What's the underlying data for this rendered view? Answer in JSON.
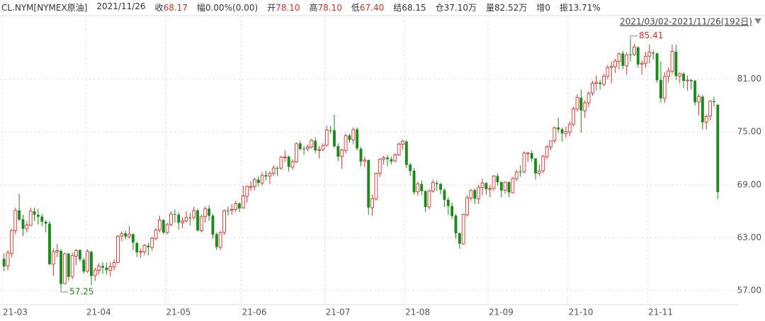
{
  "header": {
    "symbol": "CL.NYM[NYMEX原油]",
    "date": "2021/11/26",
    "items": [
      {
        "label": "收",
        "value": "68.17",
        "color": "red"
      },
      {
        "label": "幅",
        "value": "0.00%(0.00)",
        "color": "dark"
      },
      {
        "label": "开",
        "value": "78.10",
        "color": "red"
      },
      {
        "label": "高",
        "value": "78.10",
        "color": "red"
      },
      {
        "label": "低",
        "value": "67.40",
        "color": "red"
      },
      {
        "label": "结",
        "value": "68.15",
        "color": "dark"
      },
      {
        "label": "仓",
        "value": "37.10万",
        "color": "dark"
      },
      {
        "label": "量",
        "value": "82.52万",
        "color": "dark"
      },
      {
        "label": "增",
        "value": "0",
        "color": "dark"
      },
      {
        "label": "振",
        "value": "13.71%",
        "color": "dark"
      }
    ]
  },
  "chart_data": {
    "type": "candlestick",
    "range_label": "2021/03/02-2021/11/26(192日)",
    "up_color": "#d6322b",
    "down_color": "#1b8a1b",
    "ylim": [
      55.4,
      88.2
    ],
    "yticks": [
      {
        "value": 57,
        "label": "57.00"
      },
      {
        "value": 63,
        "label": "63.00"
      },
      {
        "value": 69,
        "label": "69.00"
      },
      {
        "value": 75,
        "label": "75.00"
      },
      {
        "value": 81,
        "label": "81.00"
      }
    ],
    "grid": true,
    "categories": [
      "21-03",
      null,
      null,
      null,
      null,
      null,
      null,
      null,
      null,
      null,
      null,
      null,
      null,
      null,
      null,
      null,
      null,
      null,
      null,
      null,
      null,
      null,
      "21-04",
      null,
      null,
      null,
      null,
      null,
      null,
      null,
      null,
      null,
      null,
      null,
      null,
      null,
      null,
      null,
      null,
      null,
      null,
      null,
      null,
      "21-05",
      null,
      null,
      null,
      null,
      null,
      null,
      null,
      null,
      null,
      null,
      null,
      null,
      null,
      null,
      null,
      null,
      null,
      null,
      null,
      "21-06",
      null,
      null,
      null,
      null,
      null,
      null,
      null,
      null,
      null,
      null,
      null,
      null,
      null,
      null,
      null,
      null,
      null,
      null,
      null,
      null,
      null,
      "21-07",
      null,
      null,
      null,
      null,
      null,
      null,
      null,
      null,
      null,
      null,
      null,
      null,
      null,
      null,
      null,
      null,
      null,
      null,
      null,
      null,
      "21-08",
      null,
      null,
      null,
      null,
      null,
      null,
      null,
      null,
      null,
      null,
      null,
      null,
      null,
      null,
      null,
      null,
      null,
      null,
      null,
      null,
      null,
      "21-09",
      null,
      null,
      null,
      null,
      null,
      null,
      null,
      null,
      null,
      null,
      null,
      null,
      null,
      null,
      null,
      null,
      null,
      null,
      null,
      null,
      "21-10",
      null,
      null,
      null,
      null,
      null,
      null,
      null,
      null,
      null,
      null,
      null,
      null,
      null,
      null,
      null,
      null,
      null,
      null,
      null,
      null,
      "21-11",
      null,
      null,
      null,
      null,
      null,
      null,
      null,
      null,
      null,
      null,
      null,
      null,
      null,
      null,
      null,
      null,
      null,
      null
    ],
    "ohlc": [
      [
        60.6,
        61.2,
        59.2,
        59.75
      ],
      [
        59.8,
        61.6,
        59.3,
        61.28
      ],
      [
        61.2,
        64.0,
        60.8,
        63.83
      ],
      [
        63.8,
        66.4,
        63.4,
        66.09
      ],
      [
        66.1,
        67.98,
        64.9,
        65.05
      ],
      [
        65.1,
        65.6,
        63.2,
        64.01
      ],
      [
        64.0,
        64.9,
        63.6,
        64.44
      ],
      [
        64.4,
        66.4,
        64.3,
        66.02
      ],
      [
        66.0,
        66.4,
        64.9,
        65.61
      ],
      [
        65.6,
        66.3,
        64.5,
        65.39
      ],
      [
        65.4,
        65.7,
        64.3,
        64.8
      ],
      [
        64.8,
        65.0,
        63.6,
        64.6
      ],
      [
        64.6,
        64.9,
        59.9,
        60.0
      ],
      [
        60.0,
        61.8,
        58.7,
        61.42
      ],
      [
        61.4,
        62.3,
        60.8,
        61.55
      ],
      [
        61.5,
        61.7,
        57.25,
        57.76
      ],
      [
        57.8,
        61.3,
        57.7,
        61.18
      ],
      [
        61.2,
        61.3,
        58.1,
        58.56
      ],
      [
        58.6,
        61.3,
        58.3,
        60.97
      ],
      [
        60.9,
        61.7,
        59.9,
        61.56
      ],
      [
        61.6,
        61.7,
        60.3,
        60.55
      ],
      [
        60.5,
        60.7,
        58.9,
        59.16
      ],
      [
        59.2,
        61.7,
        59.0,
        61.45
      ],
      [
        61.4,
        61.5,
        57.6,
        58.65
      ],
      [
        58.7,
        59.6,
        58.1,
        59.33
      ],
      [
        59.3,
        60.1,
        58.8,
        59.77
      ],
      [
        59.8,
        60.2,
        58.9,
        59.6
      ],
      [
        59.6,
        60.2,
        58.8,
        59.32
      ],
      [
        59.3,
        60.2,
        58.6,
        59.7
      ],
      [
        59.7,
        60.6,
        59.3,
        60.18
      ],
      [
        60.2,
        63.3,
        60.1,
        63.15
      ],
      [
        63.2,
        63.7,
        62.6,
        63.46
      ],
      [
        63.5,
        63.8,
        62.8,
        63.13
      ],
      [
        63.1,
        64.3,
        62.9,
        63.38
      ],
      [
        63.4,
        63.5,
        61.6,
        62.44
      ],
      [
        62.4,
        62.5,
        60.8,
        61.35
      ],
      [
        61.4,
        61.8,
        60.7,
        61.43
      ],
      [
        61.4,
        62.3,
        61.0,
        62.14
      ],
      [
        62.1,
        62.4,
        61.0,
        61.91
      ],
      [
        61.9,
        63.1,
        61.5,
        62.94
      ],
      [
        62.9,
        64.1,
        62.7,
        63.86
      ],
      [
        63.9,
        65.5,
        63.6,
        65.01
      ],
      [
        65.0,
        65.1,
        63.4,
        63.58
      ],
      [
        63.6,
        64.7,
        63.4,
        64.49
      ],
      [
        64.5,
        66.0,
        64.3,
        65.69
      ],
      [
        65.7,
        66.2,
        64.7,
        65.63
      ],
      [
        65.6,
        65.9,
        63.9,
        64.71
      ],
      [
        64.7,
        65.3,
        64.1,
        64.9
      ],
      [
        64.9,
        66.0,
        64.7,
        65.28
      ],
      [
        65.3,
        65.8,
        64.4,
        65.28
      ],
      [
        65.3,
        66.5,
        65.0,
        66.08
      ],
      [
        66.1,
        66.3,
        63.7,
        63.82
      ],
      [
        63.8,
        65.6,
        63.6,
        65.37
      ],
      [
        65.4,
        66.5,
        64.7,
        66.27
      ],
      [
        66.3,
        66.7,
        64.9,
        65.49
      ],
      [
        65.5,
        65.7,
        62.9,
        63.36
      ],
      [
        63.4,
        63.6,
        61.6,
        61.94
      ],
      [
        61.9,
        63.8,
        61.6,
        63.58
      ],
      [
        63.6,
        66.2,
        63.3,
        66.05
      ],
      [
        66.1,
        66.5,
        65.5,
        66.07
      ],
      [
        66.1,
        66.8,
        65.6,
        66.21
      ],
      [
        66.2,
        67.2,
        65.9,
        66.85
      ],
      [
        66.9,
        67.0,
        65.9,
        66.32
      ],
      [
        66.4,
        68.9,
        66.3,
        67.72
      ],
      [
        67.7,
        68.9,
        67.0,
        68.83
      ],
      [
        68.8,
        69.4,
        68.3,
        68.81
      ],
      [
        68.8,
        69.8,
        68.4,
        69.62
      ],
      [
        69.6,
        70.0,
        68.8,
        69.23
      ],
      [
        69.2,
        70.4,
        68.9,
        70.05
      ],
      [
        70.1,
        70.6,
        69.5,
        69.96
      ],
      [
        70.0,
        70.5,
        69.1,
        70.29
      ],
      [
        70.3,
        71.2,
        70.0,
        70.91
      ],
      [
        70.9,
        71.1,
        70.0,
        70.88
      ],
      [
        70.9,
        72.3,
        70.7,
        72.12
      ],
      [
        72.1,
        72.9,
        71.6,
        72.15
      ],
      [
        72.2,
        72.3,
        70.5,
        71.04
      ],
      [
        71.0,
        71.9,
        70.7,
        71.64
      ],
      [
        71.6,
        73.8,
        71.5,
        73.66
      ],
      [
        73.7,
        74.0,
        72.9,
        73.06
      ],
      [
        73.1,
        73.4,
        72.4,
        73.08
      ],
      [
        73.1,
        73.6,
        72.8,
        73.3
      ],
      [
        73.3,
        74.2,
        73.1,
        74.05
      ],
      [
        74.0,
        74.4,
        72.6,
        72.91
      ],
      [
        72.9,
        73.4,
        72.0,
        72.98
      ],
      [
        73.0,
        73.7,
        72.8,
        73.47
      ],
      [
        73.5,
        75.7,
        73.3,
        75.23
      ],
      [
        75.2,
        75.7,
        74.8,
        75.16
      ],
      [
        75.2,
        76.98,
        73.2,
        73.37
      ],
      [
        73.4,
        73.7,
        71.7,
        72.2
      ],
      [
        72.2,
        73.1,
        70.8,
        72.94
      ],
      [
        72.9,
        74.8,
        72.6,
        74.56
      ],
      [
        74.6,
        74.8,
        73.8,
        74.1
      ],
      [
        74.1,
        75.5,
        73.6,
        75.25
      ],
      [
        75.3,
        75.5,
        72.9,
        73.13
      ],
      [
        73.1,
        73.3,
        71.1,
        71.65
      ],
      [
        71.7,
        72.2,
        71.0,
        71.81
      ],
      [
        71.8,
        71.9,
        65.6,
        66.42
      ],
      [
        66.4,
        67.9,
        65.5,
        67.42
      ],
      [
        67.4,
        70.4,
        67.2,
        70.3
      ],
      [
        70.3,
        72.0,
        69.9,
        71.91
      ],
      [
        71.9,
        72.3,
        71.3,
        72.07
      ],
      [
        72.1,
        72.4,
        71.1,
        71.91
      ],
      [
        71.9,
        72.2,
        71.3,
        71.65
      ],
      [
        71.7,
        72.6,
        71.6,
        72.39
      ],
      [
        72.4,
        73.8,
        72.3,
        73.62
      ],
      [
        73.6,
        74.1,
        73.0,
        73.95
      ],
      [
        73.9,
        74.1,
        70.9,
        71.26
      ],
      [
        71.3,
        71.5,
        70.0,
        70.56
      ],
      [
        70.6,
        70.9,
        67.9,
        68.15
      ],
      [
        68.2,
        69.4,
        67.8,
        69.09
      ],
      [
        69.1,
        69.5,
        67.8,
        68.28
      ],
      [
        68.3,
        68.4,
        65.9,
        66.48
      ],
      [
        66.5,
        68.5,
        66.2,
        68.29
      ],
      [
        68.3,
        69.6,
        68.1,
        69.25
      ],
      [
        69.2,
        69.5,
        68.3,
        69.09
      ],
      [
        69.1,
        69.2,
        67.9,
        68.44
      ],
      [
        68.4,
        68.6,
        66.5,
        67.29
      ],
      [
        67.3,
        67.6,
        65.6,
        66.59
      ],
      [
        66.6,
        67.0,
        65.1,
        65.46
      ],
      [
        65.5,
        65.7,
        62.9,
        63.5
      ],
      [
        63.5,
        63.6,
        61.74,
        62.32
      ],
      [
        62.3,
        65.7,
        62.2,
        65.64
      ],
      [
        65.6,
        67.8,
        65.4,
        67.54
      ],
      [
        67.5,
        68.5,
        67.2,
        68.36
      ],
      [
        68.4,
        68.6,
        66.8,
        67.42
      ],
      [
        67.4,
        69.0,
        66.8,
        68.74
      ],
      [
        68.7,
        69.7,
        67.8,
        69.21
      ],
      [
        69.2,
        69.3,
        67.9,
        68.5
      ],
      [
        68.5,
        69.0,
        67.6,
        68.59
      ],
      [
        68.6,
        70.1,
        68.3,
        69.99
      ],
      [
        70.0,
        70.3,
        68.9,
        69.29
      ],
      [
        69.3,
        69.4,
        67.6,
        68.35
      ],
      [
        68.4,
        69.4,
        68.0,
        69.3
      ],
      [
        69.3,
        69.4,
        67.6,
        68.14
      ],
      [
        68.1,
        69.9,
        68.0,
        69.72
      ],
      [
        69.7,
        70.7,
        69.4,
        70.45
      ],
      [
        70.5,
        71.2,
        69.9,
        70.46
      ],
      [
        70.5,
        72.8,
        70.3,
        72.61
      ],
      [
        72.6,
        72.7,
        71.6,
        72.61
      ],
      [
        72.6,
        72.9,
        71.6,
        71.97
      ],
      [
        72.0,
        72.0,
        69.6,
        70.29
      ],
      [
        70.3,
        71.3,
        70.0,
        70.56
      ],
      [
        70.6,
        72.4,
        70.3,
        72.23
      ],
      [
        72.2,
        73.5,
        71.9,
        73.3
      ],
      [
        73.3,
        74.0,
        72.9,
        73.98
      ],
      [
        74.0,
        75.6,
        73.7,
        75.45
      ],
      [
        75.5,
        76.6,
        74.9,
        75.29
      ],
      [
        75.3,
        75.5,
        73.9,
        74.83
      ],
      [
        74.8,
        75.6,
        74.3,
        75.03
      ],
      [
        75.0,
        76.2,
        74.5,
        75.88
      ],
      [
        75.9,
        77.9,
        75.6,
        77.62
      ],
      [
        77.6,
        79.3,
        77.3,
        78.93
      ],
      [
        78.9,
        79.8,
        74.9,
        77.43
      ],
      [
        77.4,
        78.6,
        76.6,
        78.3
      ],
      [
        78.3,
        79.6,
        77.8,
        79.35
      ],
      [
        79.4,
        80.8,
        79.1,
        80.52
      ],
      [
        80.5,
        81.4,
        79.7,
        80.64
      ],
      [
        80.6,
        80.9,
        79.8,
        80.44
      ],
      [
        80.4,
        81.6,
        80.2,
        81.31
      ],
      [
        81.3,
        82.6,
        81.0,
        82.28
      ],
      [
        82.3,
        83.0,
        80.5,
        82.44
      ],
      [
        82.4,
        83.3,
        81.7,
        83.04
      ],
      [
        83.0,
        84.0,
        82.1,
        83.87
      ],
      [
        83.9,
        84.2,
        82.1,
        82.5
      ],
      [
        82.5,
        84.0,
        81.5,
        83.76
      ],
      [
        83.8,
        85.41,
        83.0,
        83.76
      ],
      [
        83.8,
        85.0,
        83.6,
        84.65
      ],
      [
        84.6,
        84.7,
        82.3,
        82.66
      ],
      [
        82.7,
        83.1,
        81.5,
        82.81
      ],
      [
        82.8,
        84.1,
        82.3,
        83.57
      ],
      [
        83.6,
        84.9,
        82.8,
        84.05
      ],
      [
        84.0,
        84.3,
        83.2,
        83.91
      ],
      [
        83.9,
        84.0,
        80.6,
        80.86
      ],
      [
        80.9,
        83.0,
        78.3,
        78.81
      ],
      [
        78.8,
        81.8,
        78.3,
        81.27
      ],
      [
        81.3,
        82.3,
        80.6,
        81.93
      ],
      [
        81.9,
        84.9,
        81.6,
        84.15
      ],
      [
        84.1,
        84.9,
        80.9,
        81.34
      ],
      [
        81.3,
        81.8,
        80.5,
        81.59
      ],
      [
        81.6,
        81.8,
        80.0,
        80.79
      ],
      [
        80.8,
        81.4,
        79.7,
        80.88
      ],
      [
        80.9,
        81.0,
        79.8,
        80.76
      ],
      [
        80.8,
        80.9,
        78.0,
        78.36
      ],
      [
        78.4,
        79.3,
        76.9,
        79.01
      ],
      [
        79.0,
        79.2,
        75.3,
        76.1
      ],
      [
        76.1,
        77.0,
        75.3,
        76.75
      ],
      [
        76.8,
        78.6,
        76.3,
        78.5
      ],
      [
        78.5,
        79.0,
        77.9,
        78.39
      ],
      [
        78.1,
        78.1,
        67.4,
        68.17
      ]
    ]
  }
}
